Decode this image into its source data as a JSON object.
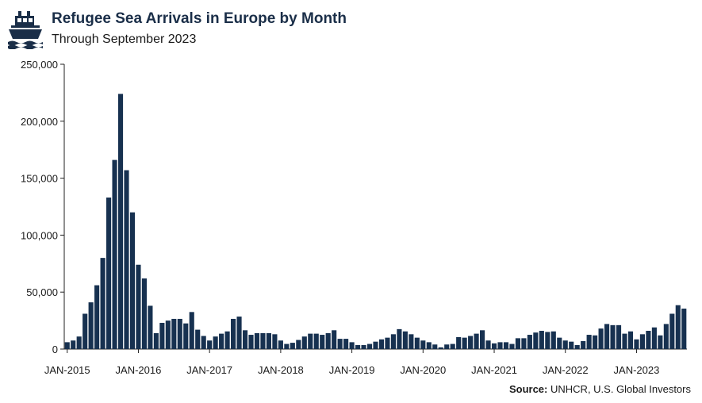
{
  "header": {
    "title": "Refugee Sea Arrivals in Europe by Month",
    "subtitle": "Through September 2023",
    "logo_icon": "ship-icon"
  },
  "footer": {
    "source_label": "Source:",
    "source_text": "UNHCR, U.S. Global Investors"
  },
  "colors": {
    "bar": "#173150",
    "title": "#1a2e48"
  },
  "chart_data": {
    "type": "bar",
    "title": "Refugee Sea Arrivals in Europe by Month",
    "subtitle": "Through September 2023",
    "xlabel": "",
    "ylabel": "",
    "ylim": [
      0,
      250000
    ],
    "y_ticks": [
      0,
      50000,
      100000,
      150000,
      200000,
      250000
    ],
    "y_tick_labels": [
      "0",
      "50,000",
      "100,000",
      "150,000",
      "200,000",
      "250,000"
    ],
    "x_tick_labels": [
      "JAN-2015",
      "JAN-2016",
      "JAN-2017",
      "JAN-2018",
      "JAN-2019",
      "JAN-2020",
      "JAN-2021",
      "JAN-2022",
      "JAN-2023"
    ],
    "categories": [
      "2015-01",
      "2015-02",
      "2015-03",
      "2015-04",
      "2015-05",
      "2015-06",
      "2015-07",
      "2015-08",
      "2015-09",
      "2015-10",
      "2015-11",
      "2015-12",
      "2016-01",
      "2016-02",
      "2016-03",
      "2016-04",
      "2016-05",
      "2016-06",
      "2016-07",
      "2016-08",
      "2016-09",
      "2016-10",
      "2016-11",
      "2016-12",
      "2017-01",
      "2017-02",
      "2017-03",
      "2017-04",
      "2017-05",
      "2017-06",
      "2017-07",
      "2017-08",
      "2017-09",
      "2017-10",
      "2017-11",
      "2017-12",
      "2018-01",
      "2018-02",
      "2018-03",
      "2018-04",
      "2018-05",
      "2018-06",
      "2018-07",
      "2018-08",
      "2018-09",
      "2018-10",
      "2018-11",
      "2018-12",
      "2019-01",
      "2019-02",
      "2019-03",
      "2019-04",
      "2019-05",
      "2019-06",
      "2019-07",
      "2019-08",
      "2019-09",
      "2019-10",
      "2019-11",
      "2019-12",
      "2020-01",
      "2020-02",
      "2020-03",
      "2020-04",
      "2020-05",
      "2020-06",
      "2020-07",
      "2020-08",
      "2020-09",
      "2020-10",
      "2020-11",
      "2020-12",
      "2021-01",
      "2021-02",
      "2021-03",
      "2021-04",
      "2021-05",
      "2021-06",
      "2021-07",
      "2021-08",
      "2021-09",
      "2021-10",
      "2021-11",
      "2021-12",
      "2022-01",
      "2022-02",
      "2022-03",
      "2022-04",
      "2022-05",
      "2022-06",
      "2022-07",
      "2022-08",
      "2022-09",
      "2022-10",
      "2022-11",
      "2022-12",
      "2023-01",
      "2023-02",
      "2023-03",
      "2023-04",
      "2023-05",
      "2023-06",
      "2023-07",
      "2023-08",
      "2023-09"
    ],
    "values": [
      6000,
      7500,
      11000,
      31000,
      41000,
      56000,
      80000,
      133000,
      166000,
      224000,
      157000,
      120000,
      74000,
      62000,
      38000,
      14000,
      23000,
      25000,
      26500,
      26500,
      22500,
      32500,
      17000,
      11500,
      7500,
      11000,
      13500,
      15500,
      26500,
      28500,
      16500,
      12500,
      14000,
      14000,
      14000,
      13000,
      7500,
      4500,
      5500,
      8000,
      11000,
      13500,
      13500,
      12500,
      14000,
      16500,
      9000,
      9000,
      6000,
      3500,
      3500,
      4500,
      6500,
      8500,
      10000,
      13000,
      17500,
      15500,
      13000,
      10000,
      7500,
      6000,
      4000,
      1500,
      4000,
      4500,
      10500,
      10000,
      11500,
      13500,
      16500,
      7500,
      5000,
      6000,
      6000,
      4500,
      9500,
      9500,
      12500,
      14500,
      16000,
      15000,
      15500,
      10000,
      7500,
      6500,
      3500,
      7000,
      12500,
      12000,
      18000,
      22000,
      21000,
      21000,
      13500,
      15500,
      8500,
      13000,
      16000,
      19000,
      12000,
      22000,
      31000,
      38500,
      35500
    ]
  }
}
